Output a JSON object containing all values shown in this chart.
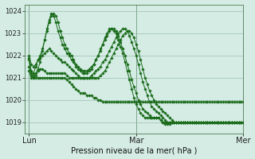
{
  "title": "Pression niveau de la mer( hPa )",
  "background_color": "#d4ece4",
  "grid_color": "#9bbfb0",
  "line_color": "#1a6b1a",
  "marker_color": "#1a6b1a",
  "ylim": [
    1018.5,
    1024.3
  ],
  "yticks": [
    1019,
    1020,
    1021,
    1022,
    1023,
    1024
  ],
  "xtick_labels": [
    "Lun",
    "Mar",
    "Mer"
  ],
  "xtick_positions": [
    0,
    48,
    96
  ],
  "total_points": 97,
  "series": [
    [
      1021.8,
      1021.3,
      1021.2,
      1021.5,
      1021.8,
      1022.0,
      1022.3,
      1022.7,
      1023.1,
      1023.5,
      1023.8,
      1023.9,
      1023.8,
      1023.5,
      1023.1,
      1022.8,
      1022.5,
      1022.3,
      1022.1,
      1022.0,
      1021.8,
      1021.6,
      1021.5,
      1021.4,
      1021.3,
      1021.3,
      1021.3,
      1021.4,
      1021.5,
      1021.6,
      1021.8,
      1022.0,
      1022.2,
      1022.5,
      1022.7,
      1022.9,
      1023.1,
      1023.2,
      1023.2,
      1023.1,
      1022.9,
      1022.6,
      1022.3,
      1022.0,
      1021.6,
      1021.3,
      1020.9,
      1020.6,
      1020.3,
      1020.0,
      1019.8,
      1019.6,
      1019.5,
      1019.4,
      1019.3,
      1019.2,
      1019.2,
      1019.2,
      1019.2,
      1019.1,
      1019.0,
      1018.9,
      1018.9,
      1018.9,
      1019.0,
      1019.0,
      1019.0,
      1019.0,
      1019.0,
      1019.0,
      1019.0,
      1019.0,
      1019.0,
      1019.0,
      1019.0,
      1019.0,
      1019.0,
      1019.0,
      1019.0,
      1019.0,
      1019.0,
      1019.0,
      1019.0,
      1019.0,
      1019.0,
      1019.0,
      1019.0,
      1019.0,
      1019.0,
      1019.0,
      1019.0,
      1019.0,
      1019.0,
      1019.0,
      1019.0,
      1019.0,
      1019.0
    ],
    [
      1021.9,
      1021.2,
      1021.1,
      1021.2,
      1021.4,
      1021.7,
      1022.2,
      1022.7,
      1023.2,
      1023.6,
      1023.9,
      1023.8,
      1023.5,
      1023.1,
      1022.8,
      1022.5,
      1022.3,
      1022.1,
      1022.0,
      1021.8,
      1021.7,
      1021.5,
      1021.4,
      1021.3,
      1021.2,
      1021.2,
      1021.2,
      1021.3,
      1021.4,
      1021.6,
      1021.8,
      1022.0,
      1022.3,
      1022.5,
      1022.8,
      1023.0,
      1023.2,
      1023.2,
      1023.1,
      1023.0,
      1022.7,
      1022.4,
      1022.1,
      1021.7,
      1021.3,
      1020.9,
      1020.5,
      1020.1,
      1019.8,
      1019.6,
      1019.4,
      1019.3,
      1019.2,
      1019.2,
      1019.2,
      1019.2,
      1019.2,
      1019.2,
      1019.2,
      1019.1,
      1019.0,
      1019.0,
      1019.0,
      1019.0,
      1019.0,
      1019.0,
      1019.0,
      1019.0,
      1019.0,
      1019.0,
      1019.0,
      1019.0,
      1019.0,
      1019.0,
      1019.0,
      1019.0,
      1019.0,
      1019.0,
      1019.0,
      1019.0,
      1019.0,
      1019.0,
      1019.0,
      1019.0,
      1019.0,
      1019.0,
      1019.0,
      1019.0,
      1019.0,
      1019.0,
      1019.0,
      1019.0,
      1019.0,
      1019.0,
      1019.0,
      1019.0,
      1019.0
    ],
    [
      1022.0,
      1021.6,
      1021.5,
      1021.6,
      1021.8,
      1021.9,
      1022.0,
      1022.1,
      1022.2,
      1022.3,
      1022.2,
      1022.1,
      1022.0,
      1021.9,
      1021.8,
      1021.7,
      1021.7,
      1021.6,
      1021.5,
      1021.4,
      1021.3,
      1021.2,
      1021.1,
      1021.0,
      1021.0,
      1021.0,
      1021.0,
      1021.0,
      1021.1,
      1021.2,
      1021.3,
      1021.4,
      1021.5,
      1021.7,
      1021.8,
      1022.0,
      1022.2,
      1022.4,
      1022.6,
      1022.8,
      1023.0,
      1023.1,
      1023.2,
      1023.2,
      1023.1,
      1022.9,
      1022.6,
      1022.3,
      1022.0,
      1021.6,
      1021.2,
      1020.8,
      1020.5,
      1020.2,
      1019.9,
      1019.7,
      1019.6,
      1019.5,
      1019.4,
      1019.3,
      1019.2,
      1019.1,
      1019.0,
      1019.0,
      1019.0,
      1019.0,
      1019.0,
      1019.0,
      1019.0,
      1019.0,
      1019.0,
      1019.0,
      1019.0,
      1019.0,
      1019.0,
      1019.0,
      1019.0,
      1019.0,
      1019.0,
      1019.0,
      1019.0,
      1019.0,
      1019.0,
      1019.0,
      1019.0,
      1019.0,
      1019.0,
      1019.0,
      1019.0,
      1019.0,
      1019.0,
      1019.0,
      1019.0,
      1019.0,
      1019.0,
      1019.0,
      1019.0
    ],
    [
      1021.5,
      1021.1,
      1021.0,
      1021.1,
      1021.3,
      1021.4,
      1021.4,
      1021.3,
      1021.2,
      1021.2,
      1021.2,
      1021.2,
      1021.2,
      1021.2,
      1021.2,
      1021.2,
      1021.2,
      1021.1,
      1021.0,
      1021.0,
      1021.0,
      1021.0,
      1021.0,
      1021.0,
      1021.0,
      1021.0,
      1021.0,
      1021.0,
      1021.0,
      1021.0,
      1021.0,
      1021.0,
      1021.1,
      1021.2,
      1021.3,
      1021.5,
      1021.7,
      1021.9,
      1022.1,
      1022.3,
      1022.5,
      1022.7,
      1022.9,
      1023.0,
      1023.1,
      1023.1,
      1023.0,
      1022.8,
      1022.5,
      1022.2,
      1021.8,
      1021.4,
      1021.0,
      1020.7,
      1020.4,
      1020.2,
      1020.0,
      1019.8,
      1019.7,
      1019.6,
      1019.5,
      1019.4,
      1019.3,
      1019.2,
      1019.1,
      1019.0,
      1019.0,
      1019.0,
      1019.0,
      1019.0,
      1019.0,
      1019.0,
      1019.0,
      1019.0,
      1019.0,
      1019.0,
      1019.0,
      1019.0,
      1019.0,
      1019.0,
      1019.0,
      1019.0,
      1019.0,
      1019.0,
      1019.0,
      1019.0,
      1019.0,
      1019.0,
      1019.0,
      1019.0,
      1019.0,
      1019.0,
      1019.0,
      1019.0,
      1019.0,
      1019.0,
      1019.0
    ],
    [
      1021.3,
      1021.0,
      1021.0,
      1021.0,
      1021.0,
      1021.0,
      1021.0,
      1021.0,
      1021.0,
      1021.0,
      1021.0,
      1021.0,
      1021.0,
      1021.0,
      1021.0,
      1021.0,
      1021.0,
      1020.9,
      1020.8,
      1020.7,
      1020.6,
      1020.5,
      1020.4,
      1020.3,
      1020.3,
      1020.3,
      1020.2,
      1020.2,
      1020.2,
      1020.1,
      1020.1,
      1020.0,
      1020.0,
      1019.9,
      1019.9,
      1019.9,
      1019.9,
      1019.9,
      1019.9,
      1019.9,
      1019.9,
      1019.9,
      1019.9,
      1019.9,
      1019.9,
      1019.9,
      1019.9,
      1019.9,
      1019.9,
      1019.9,
      1019.9,
      1019.9,
      1019.9,
      1019.9,
      1019.9,
      1019.9,
      1019.9,
      1019.9,
      1019.9,
      1019.9,
      1019.9,
      1019.9,
      1019.9,
      1019.9,
      1019.9,
      1019.9,
      1019.9,
      1019.9,
      1019.9,
      1019.9,
      1019.9,
      1019.9,
      1019.9,
      1019.9,
      1019.9,
      1019.9,
      1019.9,
      1019.9,
      1019.9,
      1019.9,
      1019.9,
      1019.9,
      1019.9,
      1019.9,
      1019.9,
      1019.9,
      1019.9,
      1019.9,
      1019.9,
      1019.9,
      1019.9,
      1019.9,
      1019.9,
      1019.9,
      1019.9,
      1019.9,
      1019.9
    ]
  ]
}
